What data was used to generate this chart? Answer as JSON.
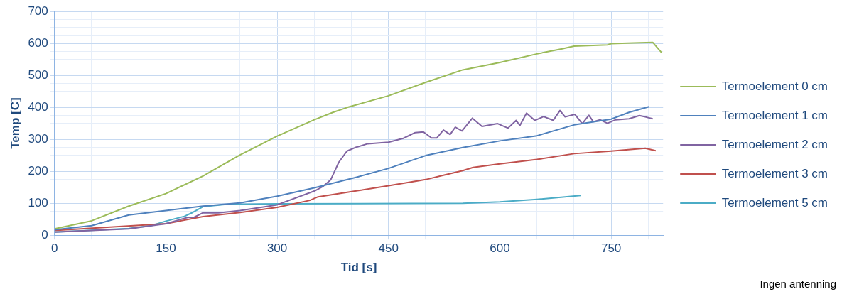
{
  "chart_data": {
    "type": "line",
    "xlabel": "Tid [s]",
    "ylabel": "Temp [C]",
    "annotations": [
      "Ingen antenning"
    ],
    "xlim": [
      0,
      820
    ],
    "ylim": [
      0,
      700
    ],
    "xticks": [
      0,
      {
        "value": 50,
        "label": null
      },
      {
        "value": 100,
        "label": null
      },
      150,
      {
        "value": 200,
        "label": null
      },
      {
        "value": 250,
        "label": null
      },
      300,
      {
        "value": 350,
        "label": null
      },
      {
        "value": 400,
        "label": null
      },
      450,
      {
        "value": 500,
        "label": null
      },
      {
        "value": 550,
        "label": null
      },
      600,
      {
        "value": 650,
        "label": null
      },
      {
        "value": 700,
        "label": null
      },
      750,
      {
        "value": 800,
        "label": null
      }
    ],
    "yticks": [
      0,
      {
        "value": 25,
        "label": null
      },
      {
        "value": 50,
        "label": null
      },
      {
        "value": 75,
        "label": null
      },
      100,
      {
        "value": 125,
        "label": null
      },
      {
        "value": 150,
        "label": null
      },
      {
        "value": 175,
        "label": null
      },
      200,
      {
        "value": 225,
        "label": null
      },
      {
        "value": 250,
        "label": null
      },
      {
        "value": 275,
        "label": null
      },
      300,
      {
        "value": 325,
        "label": null
      },
      {
        "value": 350,
        "label": null
      },
      {
        "value": 375,
        "label": null
      },
      400,
      {
        "value": 425,
        "label": null
      },
      {
        "value": 450,
        "label": null
      },
      {
        "value": 475,
        "label": null
      },
      500,
      {
        "value": 525,
        "label": null
      },
      {
        "value": 550,
        "label": null
      },
      {
        "value": 575,
        "label": null
      },
      600,
      {
        "value": 625,
        "label": null
      },
      {
        "value": 650,
        "label": null
      },
      {
        "value": 675,
        "label": null
      },
      700
    ],
    "grid": true,
    "legend": "right",
    "marker": "none",
    "line_style": "solid",
    "series": [
      {
        "name": "Termoelement 0 cm",
        "color": "#9bbb59",
        "x": [
          0,
          50,
          100,
          150,
          200,
          250,
          300,
          350,
          375,
          395,
          450,
          500,
          550,
          600,
          650,
          684,
          700,
          745,
          750,
          780,
          806,
          818
        ],
        "values": [
          20,
          45,
          91,
          130,
          185,
          251,
          310,
          361,
          384,
          400,
          436,
          478,
          517,
          540,
          567,
          583,
          591,
          595,
          599,
          601,
          603,
          571
        ]
      },
      {
        "name": "Termoelement 1 cm",
        "color": "#4f81bd",
        "x": [
          0,
          50,
          100,
          150,
          200,
          250,
          300,
          350,
          408,
          450,
          500,
          550,
          600,
          650,
          700,
          750,
          774,
          801
        ],
        "values": [
          17,
          30,
          63,
          77,
          91,
          101,
          122,
          148,
          182,
          209,
          249,
          274,
          295,
          311,
          345,
          363,
          384,
          402
        ]
      },
      {
        "name": "Termoelement 2 cm",
        "color": "#8064a2",
        "x": [
          0,
          100,
          150,
          180,
          188,
          200,
          221,
          250,
          300,
          350,
          362,
          372,
          383,
          394,
          405,
          422,
          450,
          470,
          486,
          497,
          508,
          515,
          524,
          533,
          540,
          549,
          563,
          576,
          597,
          611,
          622,
          627,
          636,
          647,
          659,
          672,
          681,
          688,
          701,
          711,
          720,
          726,
          735,
          745,
          756,
          774,
          788,
          796,
          806
        ],
        "values": [
          10,
          20,
          36,
          56,
          56,
          70,
          70,
          77,
          95,
          138,
          153,
          173,
          228,
          263,
          274,
          286,
          291,
          303,
          321,
          323,
          304,
          304,
          329,
          315,
          338,
          326,
          366,
          340,
          349,
          335,
          359,
          343,
          382,
          359,
          371,
          359,
          390,
          370,
          378,
          349,
          375,
          355,
          361,
          350,
          361,
          364,
          374,
          370,
          364
        ]
      },
      {
        "name": "Termoelement 3 cm",
        "color": "#c0504d",
        "x": [
          0,
          150,
          200,
          250,
          300,
          344,
          355,
          408,
          450,
          500,
          525,
          550,
          564,
          600,
          650,
          700,
          750,
          796,
          810
        ],
        "values": [
          15,
          36,
          58,
          71,
          87,
          109,
          120,
          139,
          155,
          174,
          188,
          202,
          212,
          223,
          237,
          255,
          263,
          272,
          264
        ]
      },
      {
        "name": "Termoelement 5 cm",
        "color": "#4bacc6",
        "x": [
          0,
          100,
          130,
          150,
          175,
          186,
          200,
          229,
          300,
          550,
          600,
          650,
          709
        ],
        "values": [
          10,
          21,
          30,
          44,
          59,
          71,
          89,
          96,
          98,
          100,
          104,
          112,
          124
        ]
      }
    ]
  }
}
